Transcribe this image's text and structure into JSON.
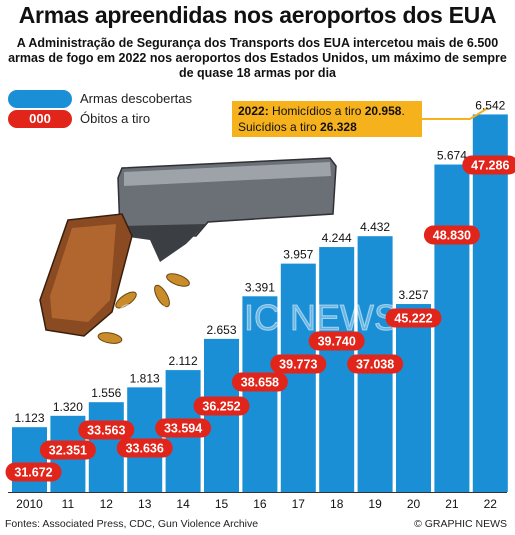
{
  "header": {
    "title": "Armas apreendidas nos aeroportos dos EUA",
    "subtitle": "A Administração de Segurança dos Transports dos EUA intercetou mais de 6.500 armas de fogo em 2022 nos aeroportos dos Estados Unidos, um máximo de sempre de quase 18 armas por dia"
  },
  "legend": {
    "firearms_label": "Armas descobertas",
    "deaths_swatch": "000",
    "deaths_label": "Óbitos a tiro"
  },
  "callout": {
    "line1_prefix": "2022:",
    "line1_text": " Homicídios a tiro ",
    "line1_value": "20.958",
    "line1_suffix": ".",
    "line2_text": "Suicídios a tiro ",
    "line2_value": "26.328"
  },
  "footer": {
    "source": "Fontes: Associated Press, CDC, Gun Violence Archive",
    "credit": "© GRAPHIC NEWS"
  },
  "watermark": "GRAPHIC NEWS",
  "colors": {
    "bar": "#1a8fd6",
    "death": "#e1251b",
    "callout": "#f6b21c"
  },
  "chart_data": {
    "type": "bar",
    "categories": [
      "2010",
      "11",
      "12",
      "13",
      "14",
      "15",
      "16",
      "17",
      "18",
      "19",
      "20",
      "21",
      "22"
    ],
    "series": [
      {
        "name": "Armas descobertas",
        "values": [
          1123,
          1320,
          1556,
          1813,
          2112,
          2653,
          3391,
          3957,
          4244,
          4432,
          3257,
          5674,
          6542
        ],
        "labels": [
          "1.123",
          "1.320",
          "1.556",
          "1.813",
          "2.112",
          "2.653",
          "3.391",
          "3.957",
          "4.244",
          "4.432",
          "3.257",
          "5.674",
          "6.542"
        ]
      },
      {
        "name": "Óbitos a tiro",
        "values": [
          31672,
          32351,
          33563,
          33636,
          33594,
          36252,
          38658,
          39773,
          39740,
          37038,
          45222,
          48830,
          47286
        ],
        "labels": [
          "31.672",
          "32.351",
          "33.563",
          "33.636",
          "33.594",
          "36.252",
          "38.658",
          "39.773",
          "39.740",
          "37.038",
          "45.222",
          "48.830",
          "47.286"
        ]
      }
    ],
    "ylim": [
      0,
      7000
    ]
  }
}
